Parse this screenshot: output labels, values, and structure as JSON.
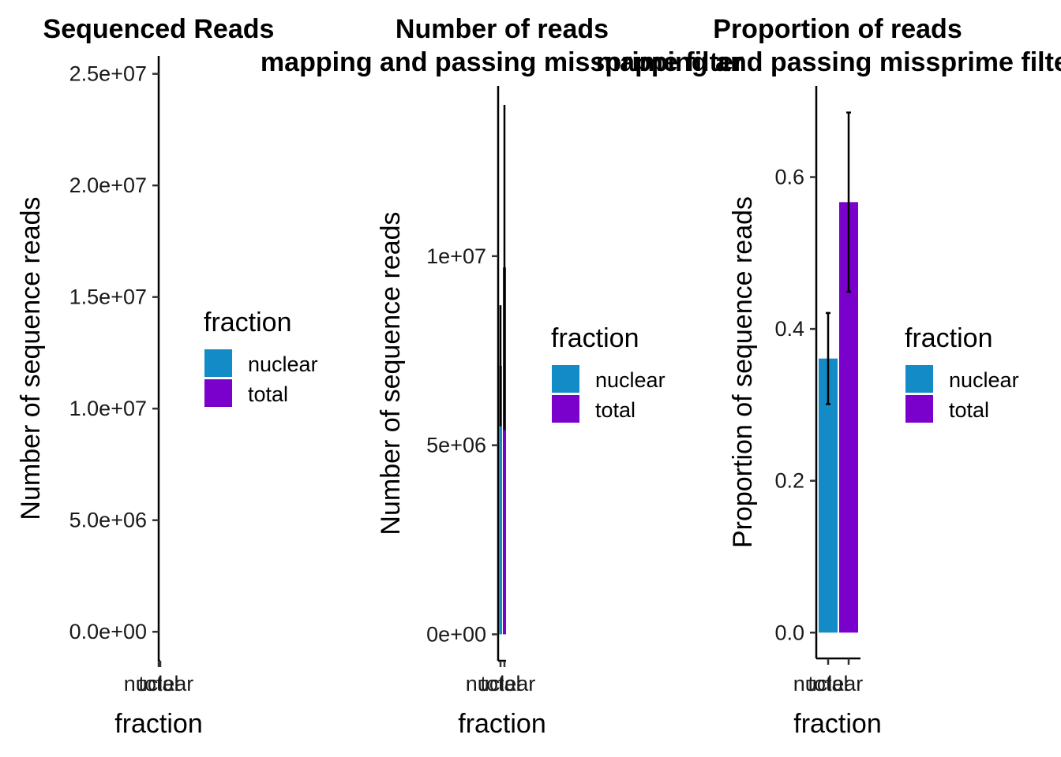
{
  "colors": {
    "nuclear": "#138bc7",
    "total": "#7a00cc"
  },
  "chart_data": [
    {
      "type": "bar",
      "title": "Sequenced Reads",
      "xlabel": "fraction",
      "ylabel": "Number of sequence reads",
      "categories": [
        "nuclear",
        "total"
      ],
      "values": [
        0,
        0
      ],
      "errors": [
        null,
        null
      ],
      "ylim": [
        -1300000,
        25800000
      ],
      "yticks": [
        0,
        5000000,
        10000000,
        15000000,
        20000000,
        25000000
      ],
      "ytick_labels": [
        "0.0e+00",
        "5.0e+06",
        "1.0e+07",
        "1.5e+07",
        "2.0e+07",
        "2.5e+07"
      ],
      "legend": {
        "title": "fraction",
        "entries": [
          "nuclear",
          "total"
        ],
        "placement": "right"
      },
      "grid": false
    },
    {
      "type": "bar",
      "title": "Number of reads\nmapping and passing missprime filter",
      "xlabel": "fraction",
      "ylabel": "Number of sequence reads",
      "categories": [
        "nuclear",
        "total"
      ],
      "values": [
        7100000,
        9700000
      ],
      "errors": [
        1600000,
        4300000
      ],
      "ylim": [
        -700000,
        14500000
      ],
      "yticks": [
        0,
        5000000,
        10000000
      ],
      "ytick_labels": [
        "0e+00",
        "5e+06",
        "1e+07"
      ],
      "legend": {
        "title": "fraction",
        "entries": [
          "nuclear",
          "total"
        ],
        "placement": "right"
      },
      "grid": false
    },
    {
      "type": "bar",
      "title": "Proportion of reads\nmapping and passing missprime filter",
      "xlabel": "fraction",
      "ylabel": "Proportion of sequence reads",
      "categories": [
        "nuclear",
        "total"
      ],
      "values": [
        0.361,
        0.567
      ],
      "errors": [
        0.06,
        0.118
      ],
      "ylim": [
        -0.034,
        0.72
      ],
      "yticks": [
        0,
        0.2,
        0.4,
        0.6
      ],
      "ytick_labels": [
        "0.0",
        "0.2",
        "0.4",
        "0.6"
      ],
      "legend": {
        "title": "fraction",
        "entries": [
          "nuclear",
          "total"
        ],
        "placement": "right"
      },
      "grid": false
    }
  ]
}
